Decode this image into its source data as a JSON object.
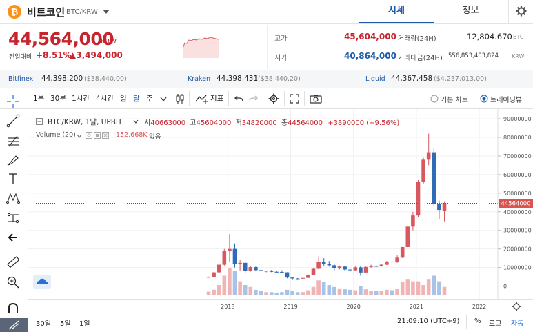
{
  "coin": {
    "name": "비트코인",
    "pair": "BTC/KRW",
    "icon": "bitcoin-icon"
  },
  "tabs": [
    {
      "label": "시세",
      "active": true
    },
    {
      "label": "정보",
      "active": false
    }
  ],
  "price": {
    "current": "44,564,000",
    "unit": "KRW",
    "change_label": "전일대비",
    "change_pct": "+8.51%",
    "change_abs": "▲3,494,000"
  },
  "stats": {
    "high_label": "고가",
    "high": "45,604,000",
    "low_label": "저가",
    "low": "40,864,000",
    "volume_label": "거래량(24H)",
    "volume": "12,804.670",
    "volume_unit": "BTC",
    "amount_label": "거래대금(24H)",
    "amount": "556,853,403,824",
    "amount_unit": "KRW"
  },
  "exchanges": [
    {
      "name": "Bitfinex",
      "price": "44,398,200",
      "usd": "($38,440.00)"
    },
    {
      "name": "Kraken",
      "price": "44,398,431",
      "usd": "($38,440.20)"
    },
    {
      "name": "Liquid",
      "price": "44,367,458",
      "usd": "($4,237,013.00)"
    }
  ],
  "toolbar": {
    "intervals": [
      "1분",
      "30분",
      "1시간",
      "4시간",
      "일",
      "달",
      "주"
    ],
    "active_interval": "달",
    "indicator_label": "지표",
    "basic_chart_label": "기본 차트",
    "tradingview_label": "트레이딩뷰"
  },
  "legend": {
    "symbol": "BTC/KRW, 1달, UPBIT",
    "open_label": "시",
    "open": "40663000",
    "high_label": "고",
    "high": "45604000",
    "low_label": "저",
    "low": "34820000",
    "close_label": "종",
    "close": "44564000",
    "change": "+3890000 (+9.56%)",
    "volume_label": "Volume (20)",
    "volume_value": "152.668K",
    "volume_na": "없음"
  },
  "price_tag": "44564000",
  "bottom": {
    "ranges": [
      "30일",
      "5일",
      "1일"
    ],
    "time": "21:09:10 (UTC+9)",
    "percent": "%",
    "log": "로그",
    "auto": "자동"
  },
  "chart_data": {
    "type": "candlestick",
    "x_ticks": [
      "2018",
      "2019",
      "2020",
      "2021",
      "2022"
    ],
    "y_ticks": [
      "90000000",
      "80000000",
      "70000000",
      "60000000",
      "50000000",
      "40000000",
      "30000000",
      "20000000",
      "10000000",
      "0"
    ],
    "ylim": [
      -5000000,
      93000000
    ],
    "last_price": 44564000,
    "candles": [
      [
        4800000,
        5100000,
        4500000,
        4900000,
        0.08
      ],
      [
        4900000,
        7600000,
        4700000,
        7400000,
        0.12
      ],
      [
        7400000,
        12000000,
        7000000,
        11500000,
        0.22
      ],
      [
        11500000,
        20000000,
        11000000,
        19000000,
        0.42
      ],
      [
        19000000,
        28000000,
        13000000,
        20000000,
        0.58
      ],
      [
        20000000,
        23000000,
        10000000,
        11800000,
        0.52
      ],
      [
        11800000,
        14000000,
        8000000,
        12500000,
        0.3
      ],
      [
        12500000,
        13000000,
        7200000,
        8100000,
        0.22
      ],
      [
        8100000,
        10800000,
        7800000,
        10200000,
        0.18
      ],
      [
        10200000,
        10500000,
        8200000,
        8600000,
        0.12
      ],
      [
        8600000,
        9200000,
        7200000,
        8000000,
        0.1
      ],
      [
        8000000,
        8400000,
        7400000,
        8200000,
        0.07
      ],
      [
        8200000,
        8700000,
        7500000,
        7700000,
        0.07
      ],
      [
        7700000,
        8100000,
        7300000,
        7600000,
        0.06
      ],
      [
        7600000,
        8500000,
        7200000,
        7400000,
        0.07
      ],
      [
        7400000,
        7500000,
        4200000,
        4600000,
        0.12
      ],
      [
        4600000,
        4800000,
        3600000,
        4100000,
        0.09
      ],
      [
        4100000,
        4300000,
        3800000,
        4000000,
        0.07
      ],
      [
        4000000,
        4500000,
        3900000,
        4400000,
        0.07
      ],
      [
        4400000,
        6300000,
        4300000,
        6000000,
        0.11
      ],
      [
        6000000,
        9600000,
        5900000,
        9300000,
        0.18
      ],
      [
        9300000,
        16000000,
        9000000,
        13000000,
        0.32
      ],
      [
        13000000,
        15000000,
        11000000,
        11800000,
        0.28
      ],
      [
        11800000,
        13500000,
        10500000,
        11200000,
        0.22
      ],
      [
        11200000,
        12000000,
        8500000,
        9500000,
        0.18
      ],
      [
        9500000,
        11000000,
        9000000,
        10500000,
        0.15
      ],
      [
        10500000,
        11000000,
        8300000,
        8900000,
        0.13
      ],
      [
        8900000,
        9500000,
        7800000,
        8500000,
        0.12
      ],
      [
        8500000,
        10800000,
        8300000,
        10100000,
        0.11
      ],
      [
        10100000,
        11000000,
        5600000,
        7300000,
        0.2
      ],
      [
        7300000,
        10500000,
        7000000,
        10300000,
        0.13
      ],
      [
        10300000,
        11500000,
        9800000,
        10800000,
        0.1
      ],
      [
        10800000,
        11200000,
        10100000,
        10600000,
        0.09
      ],
      [
        10600000,
        11700000,
        10500000,
        11500000,
        0.1
      ],
      [
        11500000,
        13500000,
        11300000,
        13200000,
        0.12
      ],
      [
        13200000,
        14200000,
        12500000,
        12800000,
        0.11
      ],
      [
        12800000,
        16500000,
        12500000,
        15300000,
        0.14
      ],
      [
        15300000,
        21000000,
        15100000,
        21000000,
        0.28
      ],
      [
        21000000,
        32500000,
        20800000,
        32000000,
        0.35
      ],
      [
        32000000,
        40000000,
        30000000,
        38000000,
        0.3
      ],
      [
        38000000,
        57000000,
        37000000,
        56000000,
        0.3
      ],
      [
        56000000,
        69000000,
        55000000,
        68000000,
        0.22
      ],
      [
        68000000,
        82000000,
        65000000,
        72000000,
        0.35
      ],
      [
        72000000,
        74000000,
        43000000,
        44000000,
        0.42
      ],
      [
        44000000,
        46000000,
        36000000,
        41000000,
        0.3
      ],
      [
        40663000,
        45604000,
        34820000,
        44564000,
        0.18
      ]
    ]
  }
}
